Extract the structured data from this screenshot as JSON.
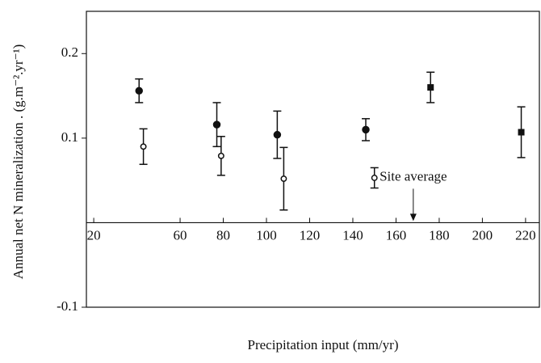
{
  "chart_data": {
    "type": "scatter",
    "y_label": "Annual net N mineralization . (g.m⁻².yr⁻¹)",
    "x_label": "Precipitation input (mm/yr)",
    "annotation": {
      "text": "Site average",
      "x": 168
    },
    "xlim": [
      16.6,
      226.4
    ],
    "xticks": [
      20,
      60,
      80,
      100,
      120,
      140,
      160,
      180,
      200,
      220
    ],
    "ylim": [
      -0.1,
      0.25
    ],
    "yticks": [
      -0.1,
      0.1,
      0.2
    ],
    "color": "#111111",
    "series": [
      {
        "marker": "filled-circle",
        "x": [
          41,
          77,
          105,
          146
        ],
        "values": [
          0.156,
          0.116,
          0.104,
          0.11
        ],
        "errors": [
          0.014,
          0.026,
          0.028,
          0.013
        ]
      },
      {
        "marker": "open-circle",
        "x": [
          43,
          79,
          108,
          150
        ],
        "values": [
          0.09,
          0.079,
          0.052,
          0.053
        ],
        "errors": [
          0.021,
          0.023,
          0.037,
          0.012
        ]
      },
      {
        "marker": "filled-square",
        "x": [
          176,
          218
        ],
        "values": [
          0.16,
          0.107
        ],
        "errors": [
          0.018,
          0.03
        ]
      }
    ]
  }
}
